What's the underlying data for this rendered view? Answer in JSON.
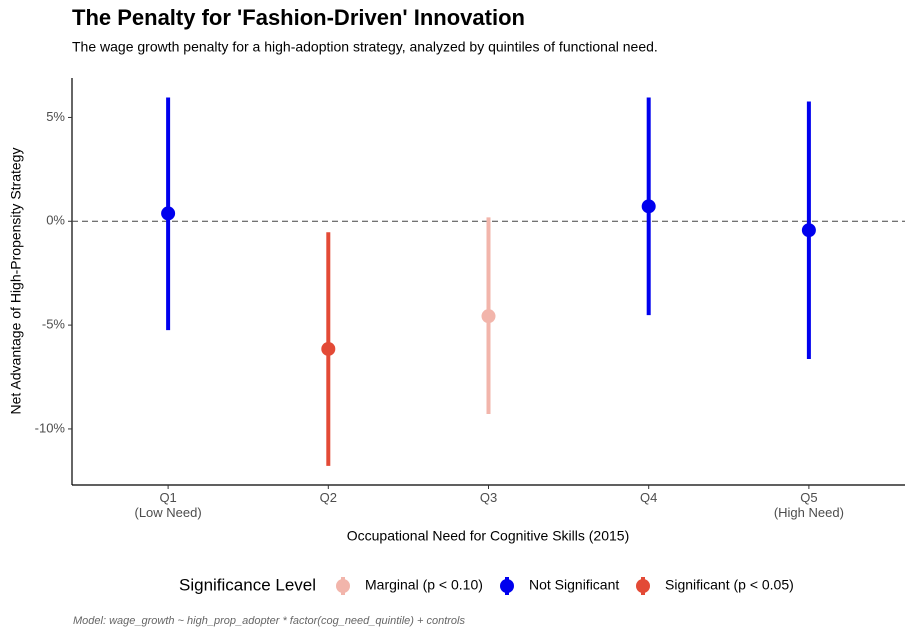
{
  "chart_data": {
    "type": "pointrange",
    "title": "The Penalty for 'Fashion-Driven' Innovation",
    "subtitle": "The wage growth penalty for a high-adoption strategy, analyzed by quintiles of functional need.",
    "x_label": "Occupational Need for Cognitive Skills (2015)",
    "y_label": "Net Advantage of High-Propensity Strategy",
    "caption": "Model: wage_growth ~ high_prop_adopter * factor(cog_need_quintile) + controls",
    "legend_title": "Significance Level",
    "legend_position": "bottom",
    "reference_line": 0,
    "categories": [
      "Q1\n(Low Need)",
      "Q2",
      "Q3",
      "Q4",
      "Q5\n(High Need)"
    ],
    "ylim": [
      -12.7,
      6.9
    ],
    "yticks": [
      {
        "value": 5,
        "label": "5%"
      },
      {
        "value": 0,
        "label": "0%"
      },
      {
        "value": -5,
        "label": "-5%"
      },
      {
        "value": -10,
        "label": "-10%"
      }
    ],
    "series": [
      {
        "name": "Marginal (p < 0.10)",
        "color": "#f2b5ab",
        "values": [
          null,
          null,
          -4.57,
          null,
          null
        ],
        "lower": [
          null,
          null,
          -9.28,
          null,
          null
        ],
        "upper": [
          null,
          null,
          0.19,
          null,
          null
        ]
      },
      {
        "name": "Not Significant",
        "color": "#0000ee",
        "values": [
          0.38,
          null,
          null,
          0.72,
          -0.43
        ],
        "lower": [
          -5.24,
          null,
          null,
          -4.52,
          -6.63
        ],
        "upper": [
          5.96,
          null,
          null,
          5.96,
          5.77
        ]
      },
      {
        "name": "Significant (p < 0.05)",
        "color": "#e34a36",
        "values": [
          null,
          -6.15,
          null,
          null,
          null
        ],
        "lower": [
          null,
          -11.78,
          null,
          null,
          null
        ],
        "upper": [
          null,
          -0.53,
          null,
          null,
          null
        ]
      }
    ]
  }
}
